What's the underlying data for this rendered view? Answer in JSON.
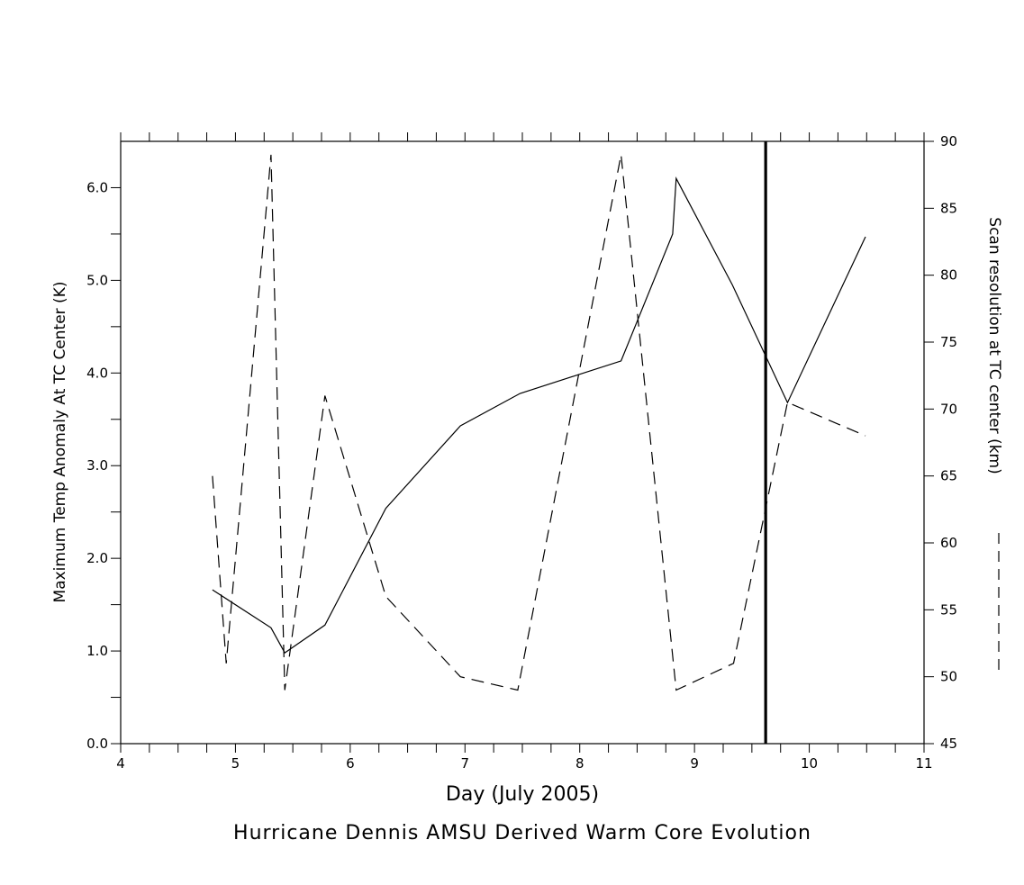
{
  "chart_data": {
    "type": "line",
    "title": "Hurricane Dennis AMSU Derived Warm Core Evolution",
    "xlabel": "Day (July 2005)",
    "ylabel": "Maximum Temp Anomaly At TC Center (K)",
    "y2label": "Scan resolution at TC center (km)",
    "xlim": [
      4,
      11
    ],
    "ylim": [
      0,
      6.5
    ],
    "y2lim": [
      45,
      90
    ],
    "x_ticks": [
      4,
      5,
      6,
      7,
      8,
      9,
      10,
      11
    ],
    "x_tick_labels": [
      "4",
      "5",
      "6",
      "7",
      "8",
      "9",
      "10",
      "11"
    ],
    "y_ticks": [
      0,
      1,
      2,
      3,
      4,
      5,
      6
    ],
    "y_tick_labels": [
      "0.0",
      "1.0",
      "2.0",
      "3.0",
      "4.0",
      "5.0",
      "6.0"
    ],
    "y2_ticks": [
      45,
      50,
      55,
      60,
      65,
      70,
      75,
      80,
      85,
      90
    ],
    "y2_tick_labels": [
      "45",
      "50",
      "55",
      "60",
      "65",
      "70",
      "75",
      "80",
      "85",
      "90"
    ],
    "grid": false,
    "vertical_marker": {
      "x": 9.62
    },
    "series": [
      {
        "style": "solid",
        "axis": "left",
        "x": [
          4.8,
          5.31,
          5.43,
          5.78,
          6.31,
          6.96,
          7.48,
          8.36,
          8.81,
          8.84,
          9.33,
          9.81,
          10.49
        ],
        "values": [
          1.66,
          1.25,
          0.98,
          1.28,
          2.54,
          3.43,
          3.78,
          4.13,
          5.5,
          6.1,
          4.95,
          3.68,
          5.47
        ]
      },
      {
        "style": "dashed",
        "axis": "right",
        "x": [
          4.8,
          4.92,
          5.31,
          5.43,
          5.78,
          6.31,
          6.96,
          7.46,
          8.36,
          8.84,
          9.34,
          9.81,
          10.49
        ],
        "values": [
          65,
          51,
          89,
          49,
          71,
          56,
          50,
          49,
          89,
          49,
          51,
          70.5,
          68
        ]
      }
    ]
  }
}
